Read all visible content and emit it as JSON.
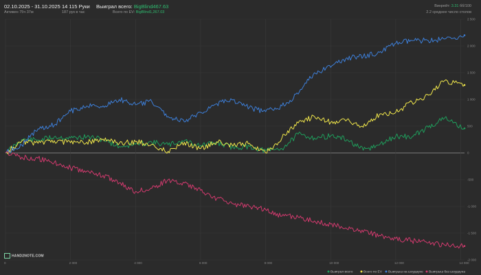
{
  "header": {
    "date_range": "02.10.2025 - 31.10.2025",
    "active_time": "Активен 75ч 37м",
    "hands": "14 115 Руки",
    "hands_per_hour": "187 рук в час",
    "won_total_label": "Выиграл всего:",
    "won_total_value": "BigBlind467.63",
    "total_ev_label": "Всего по EV:",
    "total_ev_value": "BigBlind1,267.03",
    "winrate_label": "Винрейт:",
    "winrate_value": "3.31",
    "winrate_unit": "бб/100",
    "avg_tables": "2.2 среднее число столов"
  },
  "logo": {
    "text": "HAND2NOTE.COM"
  },
  "colors": {
    "background": "#2b2b2b",
    "grid": "#3a3a3a",
    "zero_line": "#9a9a9a",
    "won": "#1f9e5c",
    "ev": "#f2e84b",
    "showdown": "#3d7fd9",
    "no_showdown": "#d23a6e"
  },
  "chart_data": {
    "type": "line",
    "x_ticks": [
      "0",
      "2 000",
      "4 000",
      "6 000",
      "8 000",
      "10 000",
      "12 000",
      "14 000"
    ],
    "y_ticks": [
      "2 500",
      "2 000",
      "1 500",
      "1 000",
      "500",
      "0",
      "-500",
      "-1 000",
      "-1 500",
      "-2 000"
    ],
    "xlim": [
      0,
      14115
    ],
    "ylim": [
      -2000,
      2500
    ],
    "series": [
      {
        "name": "Выиграл всего",
        "color": "#1f9e5c",
        "x": [
          0,
          500,
          1000,
          1500,
          2000,
          2500,
          3000,
          3500,
          4000,
          4500,
          5000,
          5500,
          6000,
          6500,
          7000,
          7500,
          8000,
          8500,
          9000,
          9500,
          10000,
          10500,
          11000,
          11500,
          12000,
          12500,
          13000,
          13500,
          14115
        ],
        "y": [
          0,
          250,
          240,
          300,
          280,
          300,
          250,
          120,
          160,
          200,
          150,
          230,
          140,
          190,
          100,
          120,
          40,
          80,
          350,
          280,
          320,
          250,
          50,
          150,
          310,
          300,
          480,
          650,
          460
        ]
      },
      {
        "name": "Всего по EV",
        "color": "#f2e84b",
        "x": [
          0,
          500,
          1000,
          1500,
          2000,
          2500,
          3000,
          3500,
          4000,
          4500,
          5000,
          5500,
          6000,
          6500,
          7000,
          7500,
          8000,
          8500,
          9000,
          9500,
          10000,
          10500,
          11000,
          11500,
          12000,
          12500,
          13000,
          13500,
          14115
        ],
        "y": [
          0,
          220,
          180,
          230,
          190,
          200,
          260,
          180,
          210,
          160,
          30,
          200,
          80,
          210,
          130,
          180,
          0,
          280,
          560,
          680,
          570,
          620,
          480,
          720,
          760,
          950,
          1080,
          1350,
          1270
        ]
      },
      {
        "name": "Выигрыш на шоудауне",
        "color": "#3d7fd9",
        "x": [
          0,
          500,
          1000,
          1500,
          2000,
          2500,
          3000,
          3500,
          4000,
          4500,
          5000,
          5500,
          6000,
          6500,
          7000,
          7500,
          8000,
          8500,
          9000,
          9500,
          10000,
          10500,
          11000,
          11500,
          12000,
          12500,
          13000,
          13500,
          14115
        ],
        "y": [
          0,
          150,
          450,
          520,
          780,
          880,
          880,
          1000,
          900,
          960,
          680,
          580,
          760,
          920,
          990,
          850,
          770,
          880,
          1100,
          1500,
          1600,
          1780,
          1800,
          1880,
          2050,
          2100,
          2100,
          2130,
          2200
        ]
      },
      {
        "name": "Выигрыш без шоудауна",
        "color": "#d23a6e",
        "x": [
          0,
          500,
          1000,
          1500,
          2000,
          2500,
          3000,
          3500,
          4000,
          4500,
          5000,
          5500,
          6000,
          6500,
          7000,
          7500,
          8000,
          8500,
          9000,
          9500,
          10000,
          10500,
          11000,
          11500,
          12000,
          12500,
          13000,
          13500,
          14115
        ],
        "y": [
          0,
          -80,
          -100,
          -180,
          -280,
          -340,
          -420,
          -560,
          -720,
          -660,
          -500,
          -560,
          -700,
          -850,
          -950,
          -1000,
          -1060,
          -1180,
          -1200,
          -1270,
          -1330,
          -1420,
          -1480,
          -1540,
          -1600,
          -1640,
          -1680,
          -1720,
          -1740
        ]
      }
    ],
    "grid": true,
    "legend_position": "bottom-right"
  }
}
